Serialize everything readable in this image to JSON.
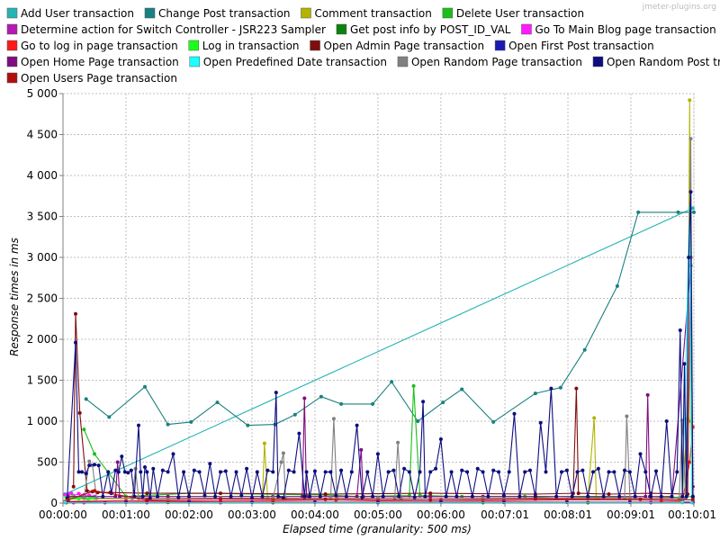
{
  "watermark": "jmeter-plugins.org",
  "chart_data": {
    "type": "line",
    "xlabel": "Elapsed time (granularity: 500 ms)",
    "ylabel": "Response times in ms",
    "xlim": [
      0,
      601
    ],
    "ylim": [
      0,
      5000
    ],
    "x_ticks": [
      {
        "label": "00:00:00",
        "value": 0
      },
      {
        "label": "00:01:00",
        "value": 60
      },
      {
        "label": "00:02:00",
        "value": 120
      },
      {
        "label": "00:03:00",
        "value": 180
      },
      {
        "label": "00:04:00",
        "value": 240
      },
      {
        "label": "00:05:00",
        "value": 300
      },
      {
        "label": "00:06:00",
        "value": 360
      },
      {
        "label": "00:07:01",
        "value": 421
      },
      {
        "label": "00:08:01",
        "value": 481
      },
      {
        "label": "00:09:01",
        "value": 541
      },
      {
        "label": "00:10:01",
        "value": 601
      }
    ],
    "y_ticks": [
      {
        "label": "0",
        "value": 0
      },
      {
        "label": "500",
        "value": 500
      },
      {
        "label": "1 000",
        "value": 1000
      },
      {
        "label": "1 500",
        "value": 1500
      },
      {
        "label": "2 000",
        "value": 2000
      },
      {
        "label": "2 500",
        "value": 2500
      },
      {
        "label": "3 000",
        "value": 3000
      },
      {
        "label": "3 500",
        "value": 3500
      },
      {
        "label": "4 000",
        "value": 4000
      },
      {
        "label": "4 500",
        "value": 4500
      },
      {
        "label": "5 000",
        "value": 5000
      }
    ],
    "grid": true,
    "legend_position": "top",
    "series": [
      {
        "name": "Add User transaction",
        "color": "#26b3b3",
        "x": [
          2,
          600
        ],
        "y": [
          110,
          3600
        ]
      },
      {
        "name": "Change Post transaction",
        "color": "#1a8080",
        "x": [
          22,
          44,
          78,
          100,
          122,
          147,
          176,
          202,
          221,
          246,
          265,
          295,
          313,
          338,
          362,
          380,
          410,
          450,
          474,
          497,
          528,
          548,
          586,
          601
        ],
        "y": [
          1270,
          1050,
          1420,
          960,
          990,
          1230,
          950,
          960,
          1080,
          1300,
          1210,
          1210,
          1480,
          1000,
          1230,
          1390,
          990,
          1340,
          1410,
          1870,
          2650,
          3550,
          3550,
          3550
        ]
      },
      {
        "name": "Comment transaction",
        "color": "#b3b300",
        "x": [
          5,
          100,
          190,
          192,
          195,
          300,
          470,
          500,
          506,
          508,
          510,
          560,
          590,
          595,
          597,
          598,
          600
        ],
        "y": [
          50,
          60,
          60,
          730,
          60,
          60,
          60,
          60,
          1040,
          60,
          60,
          60,
          60,
          1030,
          4920,
          1000,
          60
        ]
      },
      {
        "name": "Delete User transaction",
        "color": "#1abf1a",
        "x": [
          20,
          30,
          60,
          120,
          250,
          280,
          320,
          330,
          334,
          340,
          350,
          380,
          440,
          470,
          500,
          560,
          600
        ],
        "y": [
          900,
          600,
          80,
          120,
          100,
          80,
          90,
          90,
          1430,
          90,
          90,
          80,
          80,
          60,
          70,
          60,
          80
        ]
      },
      {
        "name": "Determine action for Switch Controller - JSR223 Sampler",
        "color": "#b31ab3",
        "x": [
          3,
          10,
          20,
          40,
          80,
          150,
          300,
          500,
          560,
          600
        ],
        "y": [
          5,
          5,
          5,
          5,
          5,
          5,
          5,
          5,
          5,
          5
        ]
      },
      {
        "name": "Get post info by POST_ID_VAL",
        "color": "#0d800d",
        "x": [
          3,
          100,
          200,
          300,
          400,
          500,
          600
        ],
        "y": [
          5,
          8,
          6,
          7,
          5,
          6,
          8
        ]
      },
      {
        "name": "Go To Main Blog page transaction",
        "color": "#ff1aff",
        "x": [
          2,
          5,
          8,
          10,
          15,
          20,
          25,
          30
        ],
        "y": [
          100,
          110,
          120,
          90,
          115,
          100,
          95,
          80
        ]
      },
      {
        "name": "Go to log in page transaction",
        "color": "#ff1a1a",
        "x": [
          2,
          60,
          120,
          200,
          260,
          300,
          360,
          420,
          480,
          540,
          570,
          590,
          597,
          600
        ],
        "y": [
          20,
          30,
          25,
          30,
          40,
          30,
          35,
          30,
          40,
          40,
          35,
          30,
          500,
          930
        ]
      },
      {
        "name": "Log in transaction",
        "color": "#1aff1a",
        "x": [
          3,
          6,
          9,
          12,
          15,
          18,
          21,
          24,
          27,
          30
        ],
        "y": [
          70,
          60,
          80,
          65,
          55,
          75,
          60,
          50,
          65,
          60
        ]
      },
      {
        "name": "Open Admin Page transaction",
        "color": "#800d0d",
        "x": [
          10,
          12,
          16,
          23,
          28,
          33,
          45,
          80,
          150,
          250,
          350,
          450,
          486,
          489,
          491,
          520,
          560,
          595,
          598,
          600
        ],
        "y": [
          200,
          2310,
          1100,
          150,
          140,
          130,
          130,
          120,
          120,
          110,
          120,
          110,
          120,
          1400,
          120,
          110,
          120,
          110,
          3000,
          200
        ]
      },
      {
        "name": "Open First Post transaction",
        "color": "#1a1ab3",
        "x": [
          3,
          60,
          120,
          180,
          240,
          300,
          360,
          420,
          480,
          540,
          600
        ],
        "y": [
          10,
          10,
          12,
          10,
          11,
          10,
          12,
          10,
          11,
          10,
          12
        ]
      },
      {
        "name": "Open Home Page transaction",
        "color": "#800d80",
        "x": [
          5,
          50,
          52,
          54,
          100,
          200,
          228,
          230,
          232,
          280,
          284,
          286,
          350,
          400,
          450,
          500,
          555,
          557,
          559,
          580,
          598,
          600
        ],
        "y": [
          80,
          80,
          500,
          80,
          80,
          80,
          80,
          1280,
          80,
          80,
          650,
          80,
          80,
          80,
          80,
          80,
          80,
          1320,
          80,
          80,
          2900,
          80
        ]
      },
      {
        "name": "Open Predefined Date transaction",
        "color": "#1affff",
        "x": [
          2,
          590,
          597,
          599,
          600
        ],
        "y": [
          5,
          5,
          3600,
          5,
          60
        ]
      },
      {
        "name": "Open Random Page transaction",
        "color": "#808080",
        "x": [
          20,
          25,
          28,
          32,
          66,
          69,
          72,
          150,
          200,
          208,
          210,
          212,
          230,
          255,
          258,
          261,
          300,
          316,
          319,
          322,
          400,
          420,
          450,
          500,
          530,
          535,
          537,
          540,
          560,
          587,
          590,
          593,
          598,
          600
        ],
        "y": [
          60,
          510,
          460,
          60,
          60,
          420,
          60,
          60,
          60,
          500,
          610,
          60,
          60,
          60,
          1030,
          60,
          60,
          60,
          740,
          60,
          60,
          60,
          60,
          60,
          60,
          60,
          1060,
          60,
          60,
          60,
          1010,
          60,
          4450,
          60
        ]
      },
      {
        "name": "Open Random Post transaction",
        "color": "#0d0d80",
        "x": [
          4,
          12,
          15,
          18,
          22,
          25,
          30,
          34,
          38,
          43,
          46,
          50,
          53,
          56,
          59,
          62,
          65,
          68,
          72,
          74,
          76,
          78,
          80,
          83,
          86,
          90,
          95,
          100,
          105,
          110,
          115,
          120,
          125,
          130,
          135,
          140,
          145,
          150,
          155,
          160,
          165,
          170,
          175,
          180,
          185,
          190,
          195,
          200,
          203,
          205,
          210,
          215,
          220,
          225,
          230,
          232,
          235,
          240,
          245,
          250,
          255,
          260,
          265,
          270,
          275,
          280,
          285,
          290,
          295,
          300,
          305,
          310,
          315,
          320,
          325,
          330,
          335,
          340,
          343,
          345,
          350,
          355,
          360,
          365,
          370,
          375,
          380,
          385,
          390,
          395,
          400,
          405,
          410,
          415,
          420,
          425,
          430,
          435,
          440,
          445,
          450,
          455,
          460,
          465,
          470,
          475,
          480,
          485,
          490,
          495,
          500,
          505,
          510,
          515,
          520,
          525,
          530,
          535,
          540,
          545,
          550,
          555,
          560,
          565,
          570,
          575,
          580,
          585,
          588,
          590,
          592,
          594,
          596,
          598,
          600
        ],
        "y": [
          60,
          1960,
          380,
          380,
          360,
          460,
          470,
          460,
          80,
          380,
          120,
          400,
          380,
          570,
          380,
          370,
          400,
          80,
          950,
          380,
          80,
          440,
          380,
          60,
          420,
          80,
          400,
          380,
          600,
          70,
          380,
          80,
          400,
          380,
          90,
          480,
          80,
          380,
          390,
          80,
          380,
          90,
          420,
          60,
          380,
          80,
          400,
          380,
          1350,
          80,
          60,
          400,
          380,
          850,
          80,
          380,
          80,
          390,
          80,
          380,
          380,
          90,
          400,
          80,
          380,
          950,
          70,
          380,
          80,
          600,
          80,
          380,
          400,
          80,
          420,
          380,
          70,
          380,
          1240,
          80,
          380,
          420,
          780,
          80,
          380,
          80,
          400,
          380,
          80,
          420,
          380,
          80,
          400,
          380,
          90,
          380,
          1090,
          80,
          380,
          400,
          80,
          980,
          380,
          1400,
          80,
          380,
          400,
          80,
          380,
          400,
          80,
          380,
          420,
          80,
          380,
          380,
          80,
          400,
          380,
          80,
          600,
          380,
          80,
          390,
          80,
          1000,
          80,
          380,
          2110,
          80,
          1700,
          80,
          3000,
          3800,
          80
        ]
      },
      {
        "name": "Open Users Page transaction",
        "color": "#b30d0d",
        "x": [
          5,
          30,
          80,
          150,
          250,
          350,
          450,
          550,
          600
        ],
        "y": [
          40,
          150,
          40,
          50,
          45,
          40,
          50,
          45,
          40
        ]
      }
    ]
  }
}
